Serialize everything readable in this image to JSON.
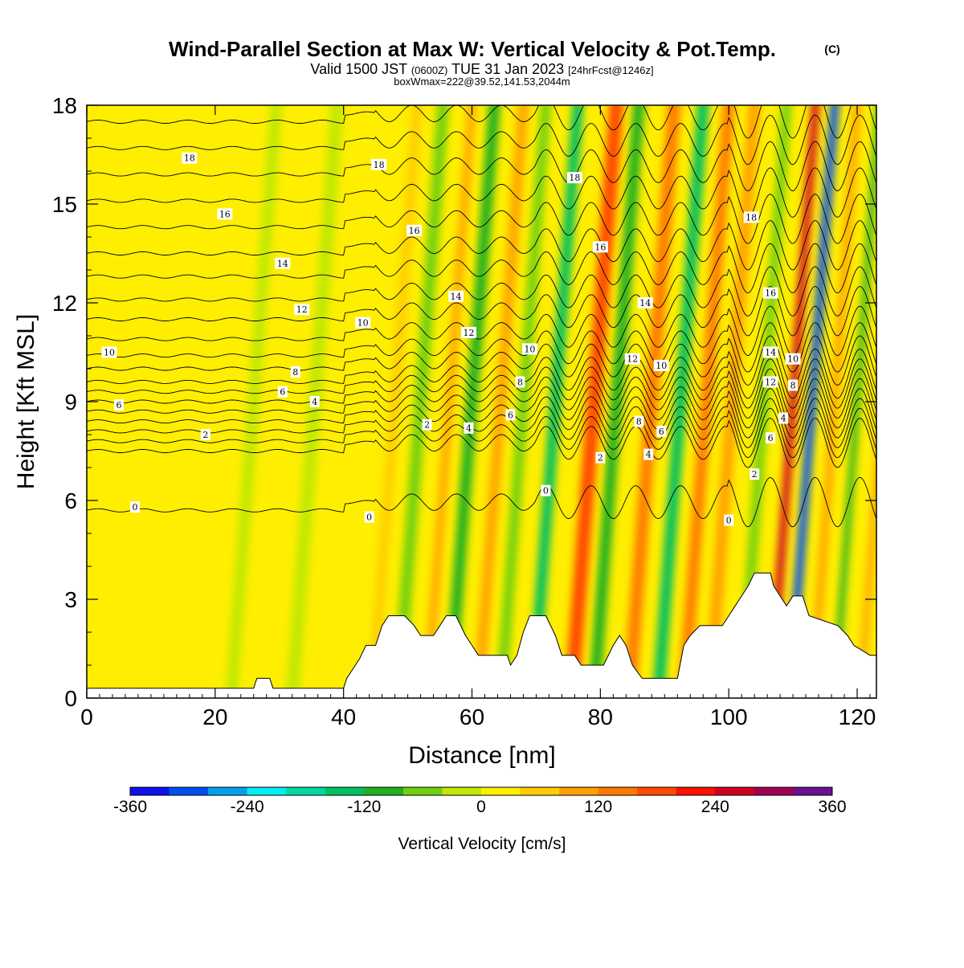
{
  "chart_data": {
    "type": "heatmap",
    "title": "Wind-Parallel Section at Max W: Vertical Velocity & Pot.Temp.",
    "title_mark": "(C)",
    "subtitle": {
      "part1": "Valid 1500 JST",
      "part2": "(0600Z)",
      "part3": "TUE 31 Jan 2023",
      "part4": "[24hrFcst@1246z]"
    },
    "subtitle2": "boxWmax=222@39.52,141.53,2044m",
    "xlabel": "Distance [nm]",
    "ylabel": "Height [Kft MSL]",
    "xlim": [
      0,
      123
    ],
    "ylim": [
      0,
      18
    ],
    "x_ticks": [
      0,
      20,
      40,
      60,
      80,
      100,
      120
    ],
    "y_ticks": [
      0,
      3,
      6,
      9,
      12,
      15,
      18
    ],
    "colorbar": {
      "label": "Vertical Velocity [cm/s]",
      "range": [
        -360,
        360
      ],
      "ticks": [
        -360,
        -240,
        -120,
        0,
        120,
        240,
        360
      ],
      "colors": [
        "#1010f0",
        "#0050f0",
        "#00a0f0",
        "#00f0f0",
        "#00d8a0",
        "#00c060",
        "#20b020",
        "#70d010",
        "#c0e800",
        "#ffee00",
        "#ffcc00",
        "#ffa000",
        "#ff7a00",
        "#ff4a00",
        "#ff1000",
        "#d00020",
        "#a00050",
        "#6a1090"
      ]
    },
    "terrain": [
      {
        "x": 0,
        "h": 0.3
      },
      {
        "x": 26,
        "h": 0.3
      },
      {
        "x": 26.5,
        "h": 0.6
      },
      {
        "x": 28.5,
        "h": 0.6
      },
      {
        "x": 29,
        "h": 0.3
      },
      {
        "x": 40,
        "h": 0.3
      },
      {
        "x": 40.5,
        "h": 0.6
      },
      {
        "x": 41.5,
        "h": 0.9
      },
      {
        "x": 42.5,
        "h": 1.2
      },
      {
        "x": 43.5,
        "h": 1.6
      },
      {
        "x": 45,
        "h": 1.6
      },
      {
        "x": 46,
        "h": 2.2
      },
      {
        "x": 47,
        "h": 2.5
      },
      {
        "x": 49.5,
        "h": 2.5
      },
      {
        "x": 51,
        "h": 2.2
      },
      {
        "x": 52,
        "h": 1.9
      },
      {
        "x": 54,
        "h": 1.9
      },
      {
        "x": 55,
        "h": 2.2
      },
      {
        "x": 56,
        "h": 2.5
      },
      {
        "x": 57.5,
        "h": 2.5
      },
      {
        "x": 59,
        "h": 1.9
      },
      {
        "x": 60,
        "h": 1.6
      },
      {
        "x": 61,
        "h": 1.3
      },
      {
        "x": 65.5,
        "h": 1.3
      },
      {
        "x": 66,
        "h": 1.0
      },
      {
        "x": 67,
        "h": 1.3
      },
      {
        "x": 68,
        "h": 2.0
      },
      {
        "x": 69,
        "h": 2.5
      },
      {
        "x": 71.5,
        "h": 2.5
      },
      {
        "x": 73,
        "h": 1.9
      },
      {
        "x": 74,
        "h": 1.3
      },
      {
        "x": 76,
        "h": 1.3
      },
      {
        "x": 77,
        "h": 1.0
      },
      {
        "x": 80.5,
        "h": 1.0
      },
      {
        "x": 82,
        "h": 1.6
      },
      {
        "x": 83,
        "h": 1.9
      },
      {
        "x": 84,
        "h": 1.6
      },
      {
        "x": 85,
        "h": 1.0
      },
      {
        "x": 86.5,
        "h": 0.6
      },
      {
        "x": 92,
        "h": 0.6
      },
      {
        "x": 93,
        "h": 1.6
      },
      {
        "x": 94,
        "h": 1.9
      },
      {
        "x": 95.5,
        "h": 2.2
      },
      {
        "x": 99,
        "h": 2.2
      },
      {
        "x": 100,
        "h": 2.5
      },
      {
        "x": 101,
        "h": 2.8
      },
      {
        "x": 102,
        "h": 3.1
      },
      {
        "x": 103,
        "h": 3.4
      },
      {
        "x": 104,
        "h": 3.8
      },
      {
        "x": 106.5,
        "h": 3.8
      },
      {
        "x": 107,
        "h": 3.4
      },
      {
        "x": 108,
        "h": 3.1
      },
      {
        "x": 109,
        "h": 2.8
      },
      {
        "x": 110,
        "h": 3.1
      },
      {
        "x": 111.5,
        "h": 3.1
      },
      {
        "x": 112.5,
        "h": 2.5
      },
      {
        "x": 117,
        "h": 2.2
      },
      {
        "x": 118.5,
        "h": 1.9
      },
      {
        "x": 119.5,
        "h": 1.6
      },
      {
        "x": 122,
        "h": 1.3
      },
      {
        "x": 123,
        "h": 1.3
      }
    ],
    "wave_bands": [
      {
        "x": 22.5,
        "w": 1.8,
        "v": -30
      },
      {
        "x": 32,
        "w": 2.0,
        "v": -20
      },
      {
        "x": 44.5,
        "w": 1.5,
        "v": 60
      },
      {
        "x": 48.5,
        "w": 1.8,
        "v": -60
      },
      {
        "x": 53,
        "w": 1.2,
        "v": 90
      },
      {
        "x": 56.5,
        "w": 1.8,
        "v": -110
      },
      {
        "x": 61,
        "w": 1.6,
        "v": 80
      },
      {
        "x": 64.5,
        "w": 1.6,
        "v": -60
      },
      {
        "x": 69.5,
        "w": 1.7,
        "v": -160
      },
      {
        "x": 75.5,
        "w": 2.2,
        "v": 190
      },
      {
        "x": 79,
        "w": 1.8,
        "v": -90
      },
      {
        "x": 84.5,
        "w": 2.0,
        "v": 150
      },
      {
        "x": 89,
        "w": 1.8,
        "v": -130
      },
      {
        "x": 93,
        "w": 1.8,
        "v": 120
      },
      {
        "x": 97,
        "w": 1.8,
        "v": 80
      },
      {
        "x": 102,
        "w": 1.5,
        "v": -60
      },
      {
        "x": 106.5,
        "w": 1.2,
        "v": 250
      },
      {
        "x": 109.5,
        "w": 1.3,
        "v": -300
      },
      {
        "x": 113,
        "w": 1.2,
        "v": 110
      },
      {
        "x": 116.5,
        "w": 1.0,
        "v": -90
      },
      {
        "x": 120.5,
        "w": 1.0,
        "v": 100
      }
    ],
    "isentrope_heights": [
      5.7,
      7.5,
      7.8,
      8.1,
      8.4,
      8.7,
      9.0,
      9.3,
      9.6,
      10.0,
      10.4,
      10.9,
      11.5,
      12.1,
      12.8,
      13.5,
      14.3,
      15.1,
      15.9,
      16.7,
      17.5
    ],
    "isentrope_labels": [
      {
        "x": 7.5,
        "y": 5.8,
        "text": "0"
      },
      {
        "x": 44,
        "y": 5.5,
        "text": "0"
      },
      {
        "x": 71.5,
        "y": 6.3,
        "text": "0"
      },
      {
        "x": 100,
        "y": 5.4,
        "text": "0"
      },
      {
        "x": 18.5,
        "y": 8.0,
        "text": "2"
      },
      {
        "x": 53,
        "y": 8.3,
        "text": "2"
      },
      {
        "x": 80,
        "y": 7.3,
        "text": "2"
      },
      {
        "x": 104,
        "y": 6.8,
        "text": "2"
      },
      {
        "x": 35.5,
        "y": 9.0,
        "text": "4"
      },
      {
        "x": 59.5,
        "y": 8.2,
        "text": "4"
      },
      {
        "x": 87.5,
        "y": 7.4,
        "text": "4"
      },
      {
        "x": 108.5,
        "y": 8.5,
        "text": "4"
      },
      {
        "x": 5,
        "y": 8.9,
        "text": "6"
      },
      {
        "x": 30.5,
        "y": 9.3,
        "text": "6"
      },
      {
        "x": 66,
        "y": 8.6,
        "text": "6"
      },
      {
        "x": 89.5,
        "y": 8.1,
        "text": "6"
      },
      {
        "x": 106.5,
        "y": 7.9,
        "text": "6"
      },
      {
        "x": 32.5,
        "y": 9.9,
        "text": "8"
      },
      {
        "x": 67.5,
        "y": 9.6,
        "text": "8"
      },
      {
        "x": 86,
        "y": 8.4,
        "text": "8"
      },
      {
        "x": 110,
        "y": 9.5,
        "text": "8"
      },
      {
        "x": 3.5,
        "y": 10.5,
        "text": "10"
      },
      {
        "x": 43,
        "y": 11.4,
        "text": "10"
      },
      {
        "x": 69,
        "y": 10.6,
        "text": "10"
      },
      {
        "x": 89.5,
        "y": 10.1,
        "text": "10"
      },
      {
        "x": 110,
        "y": 10.3,
        "text": "10"
      },
      {
        "x": 33.5,
        "y": 11.8,
        "text": "12"
      },
      {
        "x": 59.5,
        "y": 11.1,
        "text": "12"
      },
      {
        "x": 85,
        "y": 10.3,
        "text": "12"
      },
      {
        "x": 106.5,
        "y": 9.6,
        "text": "12"
      },
      {
        "x": 30.5,
        "y": 13.2,
        "text": "14"
      },
      {
        "x": 57.5,
        "y": 12.2,
        "text": "14"
      },
      {
        "x": 87,
        "y": 12.0,
        "text": "14"
      },
      {
        "x": 106.5,
        "y": 10.5,
        "text": "14"
      },
      {
        "x": 21.5,
        "y": 14.7,
        "text": "16"
      },
      {
        "x": 51,
        "y": 14.2,
        "text": "16"
      },
      {
        "x": 80,
        "y": 13.7,
        "text": "16"
      },
      {
        "x": 106.5,
        "y": 12.3,
        "text": "16"
      },
      {
        "x": 16,
        "y": 16.4,
        "text": "18"
      },
      {
        "x": 45.5,
        "y": 16.2,
        "text": "18"
      },
      {
        "x": 76,
        "y": 15.8,
        "text": "18"
      },
      {
        "x": 103.5,
        "y": 14.6,
        "text": "18"
      }
    ]
  }
}
